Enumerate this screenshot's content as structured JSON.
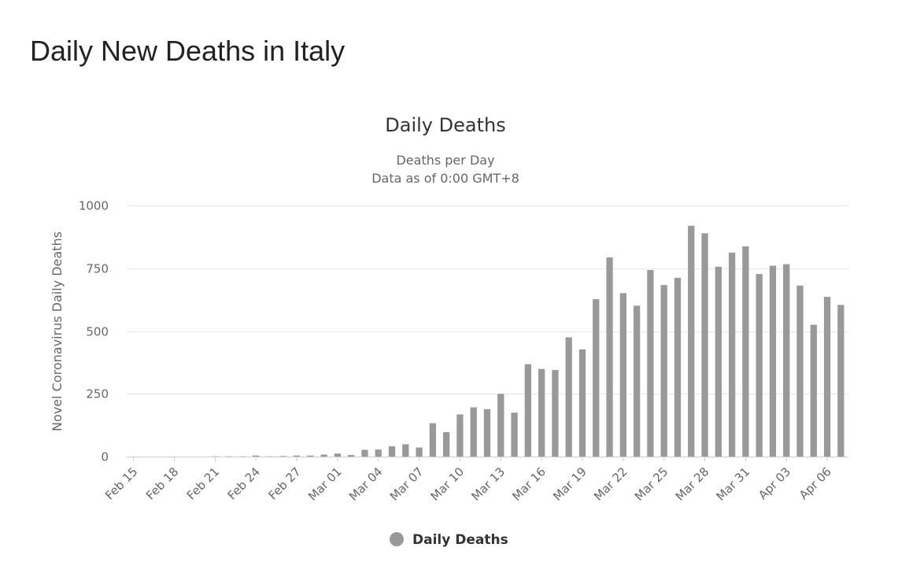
{
  "page": {
    "heading": "Daily New Deaths in Italy"
  },
  "colors": {
    "bar": "#999999",
    "grid": "#e6e6e6",
    "axis": "#cccccc",
    "text": "#333333",
    "label": "#666666"
  },
  "legend_icon": "circle-marker",
  "chart_data": {
    "type": "bar",
    "title": "Daily Deaths",
    "subtitle_lines": [
      "Deaths per Day",
      "Data as of 0:00 GMT+8"
    ],
    "xlabel": "",
    "ylabel": "Novel Coronavirus Daily Deaths",
    "ylim": [
      0,
      1000
    ],
    "yticks": [
      "0",
      "250",
      "500",
      "750",
      "1000"
    ],
    "ytick_values": [
      0,
      250,
      500,
      750,
      1000
    ],
    "grid": true,
    "legend_position": "bottom-center",
    "categories": [
      "Feb 15",
      "Feb 16",
      "Feb 17",
      "Feb 18",
      "Feb 19",
      "Feb 20",
      "Feb 21",
      "Feb 22",
      "Feb 23",
      "Feb 24",
      "Feb 25",
      "Feb 26",
      "Feb 27",
      "Feb 28",
      "Feb 29",
      "Mar 01",
      "Mar 02",
      "Mar 03",
      "Mar 04",
      "Mar 05",
      "Mar 06",
      "Mar 07",
      "Mar 08",
      "Mar 09",
      "Mar 10",
      "Mar 11",
      "Mar 12",
      "Mar 13",
      "Mar 14",
      "Mar 15",
      "Mar 16",
      "Mar 17",
      "Mar 18",
      "Mar 19",
      "Mar 20",
      "Mar 21",
      "Mar 22",
      "Mar 23",
      "Mar 24",
      "Mar 25",
      "Mar 26",
      "Mar 27",
      "Mar 28",
      "Mar 29",
      "Mar 30",
      "Mar 31",
      "Apr 01",
      "Apr 02",
      "Apr 03",
      "Apr 04",
      "Apr 05",
      "Apr 06",
      "Apr 07"
    ],
    "x_tick_labels": [
      "Feb 15",
      "Feb 18",
      "Feb 21",
      "Feb 24",
      "Feb 27",
      "Mar 01",
      "Mar 04",
      "Mar 07",
      "Mar 10",
      "Mar 13",
      "Mar 16",
      "Mar 19",
      "Mar 22",
      "Mar 25",
      "Mar 28",
      "Mar 31",
      "Apr 03",
      "Apr 06"
    ],
    "series": [
      {
        "name": "Daily Deaths",
        "values": [
          0,
          0,
          0,
          0,
          0,
          0,
          1,
          1,
          1,
          4,
          1,
          2,
          4,
          4,
          8,
          12,
          6,
          27,
          28,
          41,
          49,
          36,
          133,
          97,
          168,
          196,
          189,
          250,
          175,
          368,
          349,
          345,
          475,
          427,
          627,
          793,
          651,
          601,
          743,
          683,
          712,
          919,
          889,
          756,
          812,
          837,
          727,
          760,
          766,
          681,
          525,
          636,
          604
        ]
      }
    ]
  }
}
